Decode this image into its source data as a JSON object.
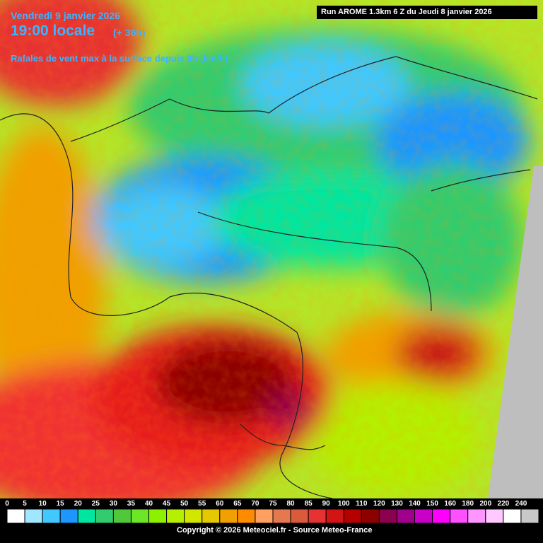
{
  "header": {
    "date": "Vendredi 9 janvier 2026",
    "time": "19:00 locale",
    "lead": "(+ 36h)",
    "parameter": "Rafales de vent max à la surface depuis 0h (km/h)",
    "run": "Run AROME 1.3km 6 Z du Jeudi 8 janvier 2026"
  },
  "legend": {
    "items": [
      {
        "value": 0,
        "color": "#ffffff"
      },
      {
        "value": 5,
        "color": "#a0e6ff"
      },
      {
        "value": 10,
        "color": "#40c8ff"
      },
      {
        "value": 15,
        "color": "#1e96ff"
      },
      {
        "value": 20,
        "color": "#00e6a0"
      },
      {
        "value": 25,
        "color": "#32cc6e"
      },
      {
        "value": 30,
        "color": "#50c83c"
      },
      {
        "value": 35,
        "color": "#6ee628"
      },
      {
        "value": 40,
        "color": "#8cf000"
      },
      {
        "value": 45,
        "color": "#b4f000"
      },
      {
        "value": 50,
        "color": "#d2e600"
      },
      {
        "value": 55,
        "color": "#e6c800"
      },
      {
        "value": 60,
        "color": "#f0a000"
      },
      {
        "value": 65,
        "color": "#ff8c00"
      },
      {
        "value": 70,
        "color": "#ffa060"
      },
      {
        "value": 75,
        "color": "#e67850"
      },
      {
        "value": 80,
        "color": "#dc5a3c"
      },
      {
        "value": 85,
        "color": "#e63232"
      },
      {
        "value": 90,
        "color": "#d21414"
      },
      {
        "value": 100,
        "color": "#b40000"
      },
      {
        "value": 110,
        "color": "#8c0000"
      },
      {
        "value": 120,
        "color": "#8c0050"
      },
      {
        "value": 130,
        "color": "#a0008c"
      },
      {
        "value": 140,
        "color": "#c800c8"
      },
      {
        "value": 150,
        "color": "#ff00ff"
      },
      {
        "value": 160,
        "color": "#ff50ff"
      },
      {
        "value": 180,
        "color": "#ff96ff"
      },
      {
        "value": 200,
        "color": "#ffc8ff"
      },
      {
        "value": 220,
        "color": "#ffffff"
      },
      {
        "value": 240,
        "color": "#c8c8c8"
      }
    ]
  },
  "footer": {
    "copyright": "Copyright © 2026 Meteociel.fr - Source Meteo-France"
  }
}
